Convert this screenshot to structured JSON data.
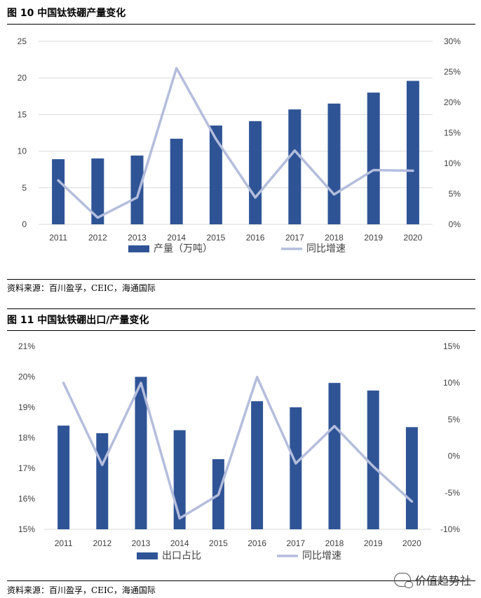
{
  "figures": [
    {
      "title": "图 10 中国钛铁硼产量变化",
      "source": "资料来源：百川盈孚，CEIC，海通国际"
    },
    {
      "title": "图 11 中国钛铁硼出口/产量变化",
      "source": "资料来源：百川盈孚，CEIC，海通国际"
    }
  ],
  "watermark": {
    "text": "价值趋势社",
    "icon": "chat-bubbles-icon"
  },
  "colors": {
    "bar": "#2F5496",
    "line": "#B4BDDC",
    "grid": "#D9D9D9",
    "axis_text": "#404040"
  },
  "chart_data": [
    {
      "type": "bar",
      "title": "图 10 中国钛铁硼产量变化",
      "categories": [
        "2011",
        "2012",
        "2013",
        "2014",
        "2015",
        "2016",
        "2017",
        "2018",
        "2019",
        "2020"
      ],
      "series": [
        {
          "name": "产量（万吨）",
          "type": "bar",
          "axis": "left",
          "values": [
            8.9,
            9.0,
            9.4,
            11.7,
            13.5,
            14.1,
            15.7,
            16.5,
            18.0,
            19.6
          ]
        },
        {
          "name": "同比增速",
          "type": "line",
          "axis": "right",
          "values": [
            7.2,
            1.1,
            4.4,
            25.6,
            14.0,
            4.4,
            12.1,
            4.9,
            8.9,
            8.8
          ]
        }
      ],
      "left_axis": {
        "ylim": [
          0,
          25
        ],
        "ticks": [
          0,
          5,
          10,
          15,
          20,
          25
        ],
        "tick_labels": [
          "0",
          "5",
          "10",
          "15",
          "20",
          "25"
        ]
      },
      "right_axis": {
        "ylim": [
          0,
          30
        ],
        "ticks": [
          0,
          5,
          10,
          15,
          20,
          25,
          30
        ],
        "tick_labels": [
          "0%",
          "5%",
          "10%",
          "15%",
          "20%",
          "25%",
          "30%"
        ]
      },
      "grid": true,
      "legend_position": "bottom"
    },
    {
      "type": "bar",
      "title": "图 11 中国钛铁硼出口/产量变化",
      "categories": [
        "2011",
        "2012",
        "2013",
        "2014",
        "2015",
        "2016",
        "2017",
        "2018",
        "2019",
        "2020"
      ],
      "series": [
        {
          "name": "出口占比",
          "type": "bar",
          "axis": "left",
          "values": [
            18.4,
            18.15,
            20.0,
            18.25,
            17.3,
            19.2,
            19.0,
            19.8,
            19.55,
            18.35
          ]
        },
        {
          "name": "同比增速",
          "type": "line",
          "axis": "right",
          "values": [
            10.0,
            -1.2,
            10.0,
            -8.5,
            -5.3,
            10.8,
            -1.0,
            4.1,
            -1.4,
            -6.2
          ]
        }
      ],
      "left_axis": {
        "ylim": [
          15,
          21
        ],
        "ticks": [
          15,
          16,
          17,
          18,
          19,
          20,
          21
        ],
        "tick_labels": [
          "15%",
          "16%",
          "17%",
          "18%",
          "19%",
          "20%",
          "21%"
        ]
      },
      "right_axis": {
        "ylim": [
          -10,
          15
        ],
        "ticks": [
          -10,
          -5,
          0,
          5,
          10,
          15
        ],
        "tick_labels": [
          "-10%",
          "-5%",
          "0%",
          "5%",
          "10%",
          "15%"
        ]
      },
      "grid": false,
      "legend_position": "bottom"
    }
  ]
}
